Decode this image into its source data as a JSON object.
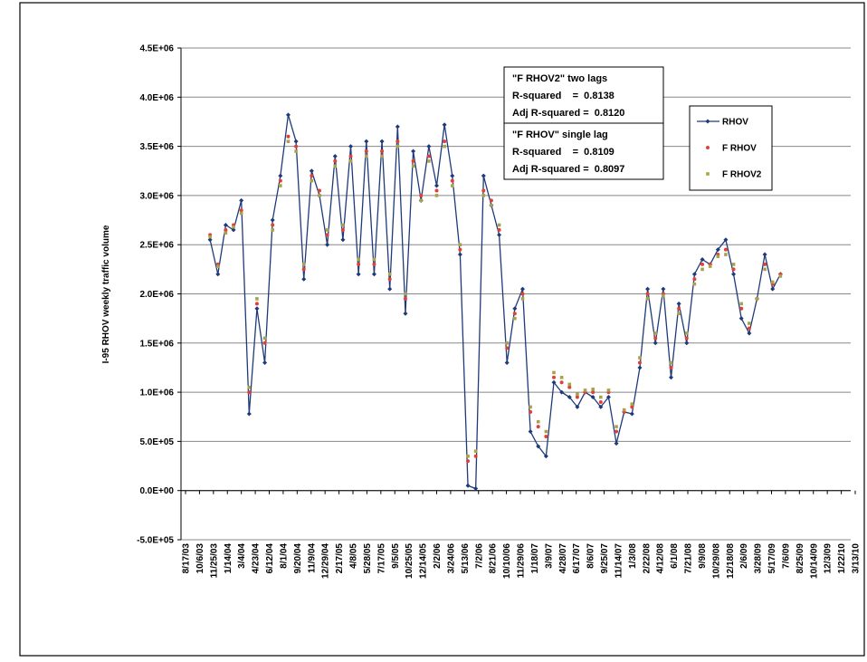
{
  "chart_data": {
    "type": "line",
    "y_label": "I-95 RHOV weekly traffic volume",
    "annotations": [
      [
        "\"F RHOV2\" two lags",
        "R-squared    =  0.8138",
        "Adj R-squared =  0.8120"
      ],
      [
        "\"F RHOV\" single lag",
        "R-squared    =  0.8109",
        "Adj R-squared =  0.8097"
      ]
    ],
    "xlim": [
      "8/17/03",
      "3/13/10"
    ],
    "xticks": [
      "8/17/03",
      "10/6/03",
      "11/25/03",
      "1/14/04",
      "3/4/04",
      "4/23/04",
      "6/12/04",
      "8/1/04",
      "9/20/04",
      "11/9/04",
      "12/29/04",
      "2/17/05",
      "4/8/05",
      "5/28/05",
      "7/17/05",
      "9/5/05",
      "10/25/05",
      "12/14/05",
      "2/2/06",
      "3/24/06",
      "5/13/06",
      "7/2/06",
      "8/21/06",
      "10/10/06",
      "11/29/06",
      "1/18/07",
      "3/9/07",
      "4/28/07",
      "6/17/07",
      "8/6/07",
      "9/25/07",
      "11/14/07",
      "1/3/08",
      "2/22/08",
      "4/12/08",
      "6/1/08",
      "7/21/08",
      "9/9/08",
      "10/29/08",
      "12/18/08",
      "2/6/09",
      "3/28/09",
      "5/17/09",
      "7/6/09",
      "8/25/09",
      "10/14/09",
      "12/3/09",
      "1/22/10",
      "3/13/10"
    ],
    "ylim": [
      -500000,
      4500000
    ],
    "yticks": [
      {
        "value": -500000,
        "label": "-5.0E+05"
      },
      {
        "value": 0,
        "label": "0.0E+00"
      },
      {
        "value": 500000,
        "label": "5.0E+05"
      },
      {
        "value": 1000000,
        "label": "1.0E+06"
      },
      {
        "value": 1500000,
        "label": "1.5E+06"
      },
      {
        "value": 2000000,
        "label": "2.0E+06"
      },
      {
        "value": 2500000,
        "label": "2.5E+06"
      },
      {
        "value": 3000000,
        "label": "3.0E+06"
      },
      {
        "value": 3500000,
        "label": "3.5E+06"
      },
      {
        "value": 4000000,
        "label": "4.0E+06"
      },
      {
        "value": 4500000,
        "label": "4.5E+06"
      }
    ],
    "grid": true,
    "legend": "right",
    "x": [
      "11/13/03",
      "12/11/03",
      "1/8/04",
      "2/5/04",
      "3/4/04",
      "4/1/04",
      "4/29/04",
      "5/27/04",
      "6/24/04",
      "7/22/04",
      "8/19/04",
      "9/16/04",
      "10/14/04",
      "11/11/04",
      "12/9/04",
      "1/6/05",
      "2/3/05",
      "3/3/05",
      "3/31/05",
      "4/28/05",
      "5/26/05",
      "6/23/05",
      "7/21/05",
      "8/18/05",
      "9/15/05",
      "10/13/05",
      "11/10/05",
      "12/8/05",
      "1/5/06",
      "2/2/06",
      "3/2/06",
      "3/30/06",
      "4/27/06",
      "5/25/06",
      "6/22/06",
      "7/20/06",
      "8/17/06",
      "9/14/06",
      "10/12/06",
      "11/9/06",
      "12/7/06",
      "1/4/07",
      "2/1/07",
      "3/1/07",
      "3/29/07",
      "4/26/07",
      "5/24/07",
      "6/21/07",
      "7/19/07",
      "8/16/07",
      "9/13/07",
      "10/11/07",
      "11/8/07",
      "12/6/07",
      "1/3/08",
      "1/31/08",
      "2/28/08",
      "3/27/08",
      "4/24/08",
      "5/22/08",
      "6/19/08",
      "7/17/08",
      "8/14/08",
      "9/11/08",
      "10/9/08",
      "11/6/08",
      "12/4/08",
      "1/1/09",
      "1/29/09",
      "2/26/09",
      "3/26/09",
      "4/23/09",
      "5/21/09",
      "6/18/09"
    ],
    "series": [
      {
        "name": "RHOV",
        "color": "#1f3a7a",
        "line": true,
        "marker": "diamond",
        "values": [
          2550000,
          2200000,
          2700000,
          2650000,
          2950000,
          780000,
          1850000,
          1300000,
          2750000,
          3200000,
          3820000,
          3550000,
          2150000,
          3250000,
          3000000,
          2500000,
          3400000,
          2550000,
          3500000,
          2200000,
          3550000,
          2200000,
          3550000,
          2050000,
          3700000,
          1800000,
          3450000,
          2950000,
          3500000,
          3100000,
          3720000,
          3200000,
          2400000,
          50000,
          20000,
          3200000,
          2900000,
          2600000,
          1300000,
          1850000,
          2050000,
          600000,
          450000,
          350000,
          1100000,
          1000000,
          950000,
          850000,
          1000000,
          950000,
          850000,
          950000,
          480000,
          800000,
          780000,
          1250000,
          2050000,
          1500000,
          2050000,
          1150000,
          1900000,
          1500000,
          2200000,
          2350000,
          2300000,
          2450000,
          2550000,
          2200000,
          1750000,
          1600000,
          1950000,
          2400000,
          2050000,
          2200000
        ]
      },
      {
        "name": "F RHOV",
        "color": "#e0403a",
        "line": false,
        "marker": "circle",
        "values": [
          2600000,
          2300000,
          2650000,
          2700000,
          2850000,
          1000000,
          1900000,
          1500000,
          2700000,
          3150000,
          3600000,
          3500000,
          2250000,
          3200000,
          3050000,
          2600000,
          3350000,
          2650000,
          3400000,
          2300000,
          3450000,
          2300000,
          3450000,
          2150000,
          3550000,
          1950000,
          3350000,
          3000000,
          3400000,
          3050000,
          3550000,
          3150000,
          2450000,
          300000,
          350000,
          3050000,
          2950000,
          2650000,
          1450000,
          1800000,
          2000000,
          800000,
          650000,
          550000,
          1150000,
          1100000,
          1050000,
          950000,
          1000000,
          1000000,
          900000,
          1000000,
          600000,
          800000,
          850000,
          1300000,
          2000000,
          1550000,
          2000000,
          1250000,
          1850000,
          1550000,
          2150000,
          2300000,
          2300000,
          2400000,
          2450000,
          2250000,
          1850000,
          1650000,
          1950000,
          2300000,
          2100000,
          2200000
        ]
      },
      {
        "name": "F RHOV2",
        "color": "#a9a24b",
        "line": false,
        "marker": "square",
        "values": [
          2580000,
          2280000,
          2620000,
          2680000,
          2820000,
          1050000,
          1950000,
          1550000,
          2650000,
          3100000,
          3550000,
          3450000,
          2300000,
          3150000,
          3000000,
          2650000,
          3300000,
          2700000,
          3350000,
          2350000,
          3400000,
          2350000,
          3400000,
          2200000,
          3500000,
          2000000,
          3300000,
          2950000,
          3350000,
          3000000,
          3500000,
          3100000,
          2500000,
          350000,
          400000,
          3000000,
          2900000,
          2700000,
          1500000,
          1750000,
          1950000,
          850000,
          700000,
          600000,
          1200000,
          1150000,
          1080000,
          980000,
          1020000,
          1030000,
          950000,
          1020000,
          650000,
          820000,
          880000,
          1350000,
          1950000,
          1600000,
          1980000,
          1300000,
          1800000,
          1600000,
          2100000,
          2250000,
          2280000,
          2380000,
          2400000,
          2300000,
          1900000,
          1700000,
          1950000,
          2250000,
          2120000,
          2180000
        ]
      }
    ]
  }
}
